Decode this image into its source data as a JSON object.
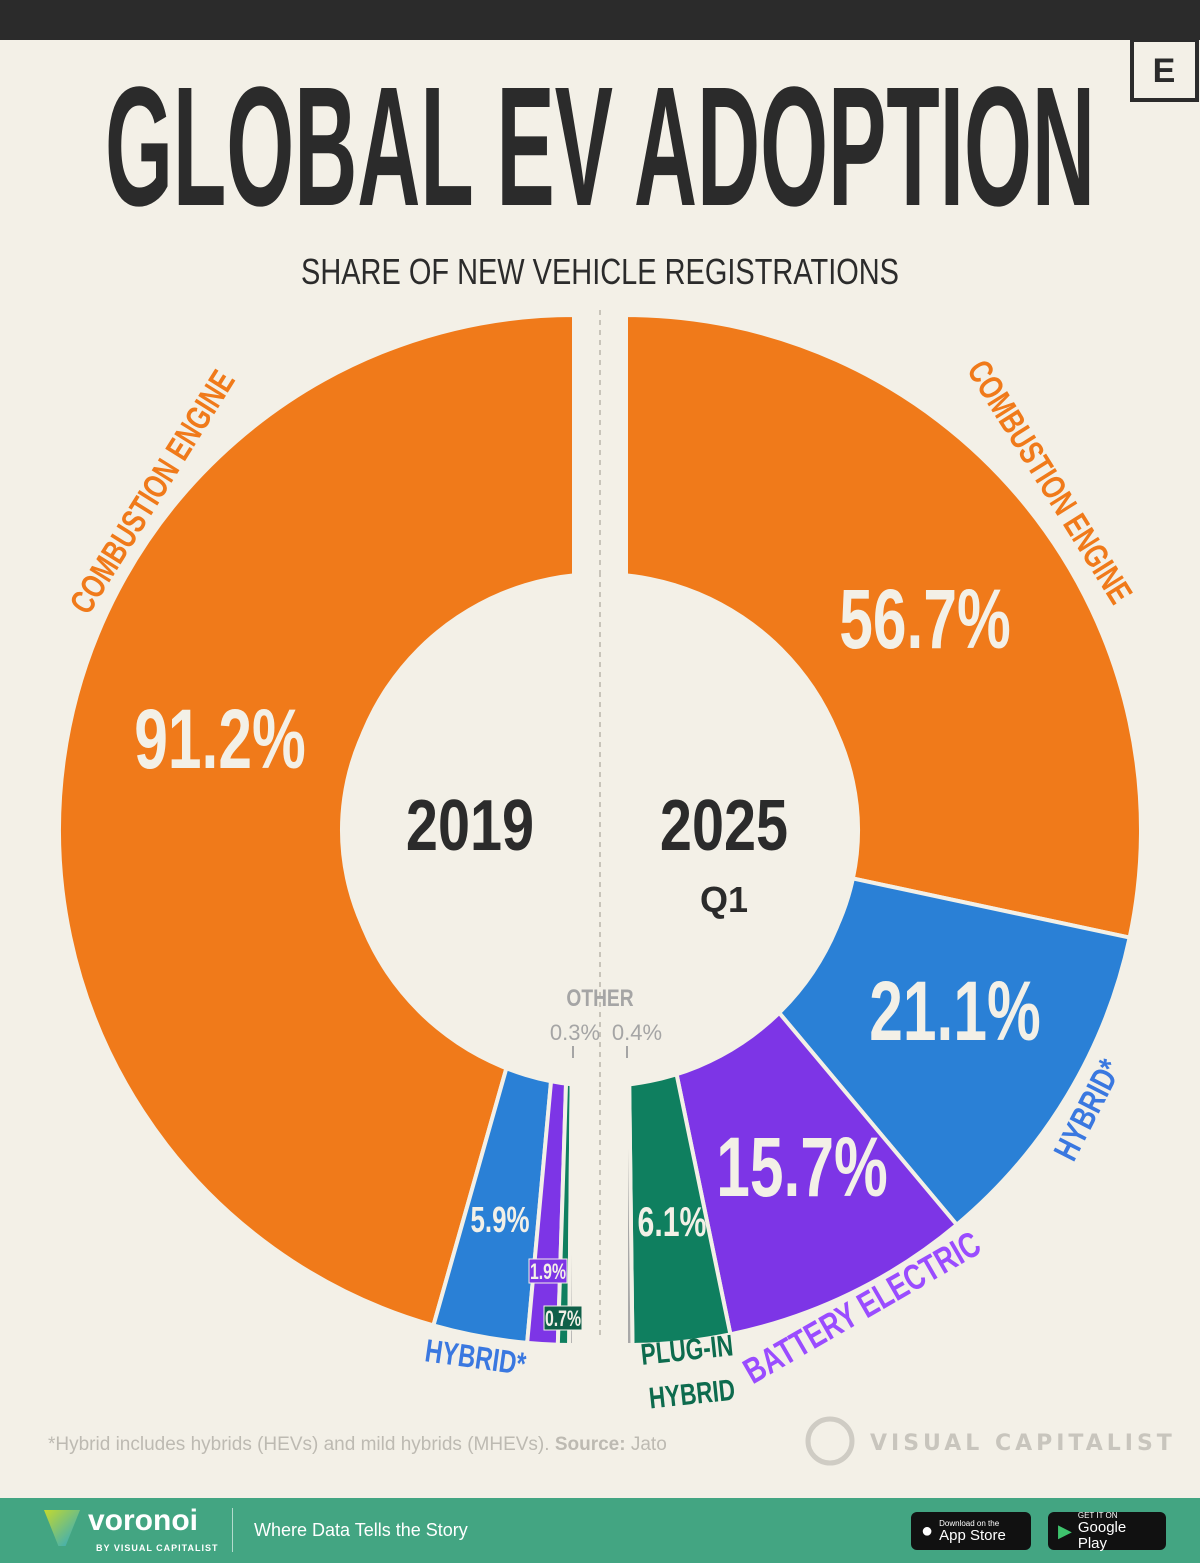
{
  "title": "GLOBAL EV ADOPTION",
  "subtitle": "SHARE OF NEW VEHICLE REGISTRATIONS",
  "brand_mark": "E",
  "colors": {
    "combustion": "#f07a1a",
    "hybrid": "#2a80d6",
    "battery": "#7d35e6",
    "plugin": "#0f7f5f",
    "other": "#a8a8a8",
    "background": "#f3f0e7"
  },
  "label_colors": {
    "combustion": "#f07a1a",
    "hybrid": "#3a78e0",
    "battery": "#9a4cff",
    "plugin": "#0d6b4e",
    "other": "#a5a5a5"
  },
  "chart_data": {
    "type": "pie",
    "subtype": "split half-donut",
    "categories": [
      "Combustion Engine",
      "Hybrid*",
      "Battery Electric",
      "Plug-in Hybrid",
      "Other"
    ],
    "category_labels": {
      "combustion": "COMBUSTION ENGINE",
      "hybrid": "HYBRID*",
      "battery": "BATTERY ELECTRIC",
      "plugin_line1": "PLUG-IN",
      "plugin_line2": "HYBRID",
      "other": "OTHER"
    },
    "series": [
      {
        "name": "2019",
        "sublabel": "",
        "values": [
          91.2,
          5.9,
          1.9,
          0.7,
          0.3
        ],
        "value_labels": [
          "91.2%",
          "5.9%",
          "1.9%",
          "0.7%",
          "0.3%"
        ]
      },
      {
        "name": "2025",
        "sublabel": "Q1",
        "values": [
          56.7,
          21.1,
          15.7,
          6.1,
          0.4
        ],
        "value_labels": [
          "56.7%",
          "21.1%",
          "15.7%",
          "6.1%",
          "0.4%"
        ]
      }
    ]
  },
  "footnote": {
    "text": "*Hybrid includes hybrids (HEVs) and mild hybrids (MHEVs).",
    "source_label": "Source:",
    "source": "Jato"
  },
  "vc_logo": "VISUAL CAPITALIST",
  "footer": {
    "brand": "voronoi",
    "brand_sub": "BY VISUAL CAPITALIST",
    "tagline": "Where Data Tells the Story",
    "app_store": {
      "small": "Download on the",
      "big": "App Store"
    },
    "google_play": {
      "small": "GET IT ON",
      "big": "Google Play"
    }
  }
}
